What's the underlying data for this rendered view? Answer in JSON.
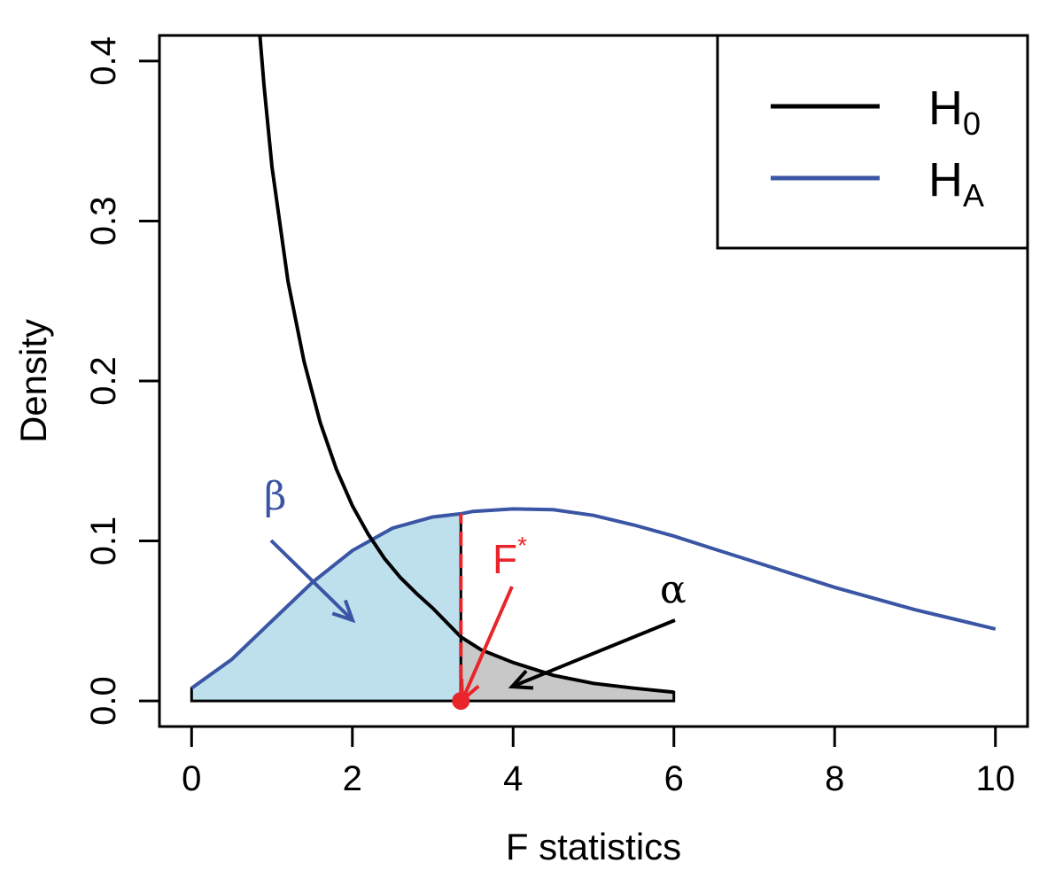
{
  "chart_data": {
    "type": "line",
    "xlabel": "F statistics",
    "ylabel": "Density",
    "xlim": [
      -0.4,
      10.4
    ],
    "ylim": [
      -0.016,
      0.416
    ],
    "x_ticks": [
      "0",
      "2",
      "4",
      "6",
      "8",
      "10"
    ],
    "y_ticks": [
      "0.0",
      "0.1",
      "0.2",
      "0.3",
      "0.4"
    ],
    "series": [
      {
        "name": "H0",
        "color": "#000000",
        "x": [
          0.85,
          0.9,
          1.0,
          1.2,
          1.4,
          1.6,
          1.8,
          2.0,
          2.2,
          2.4,
          2.6,
          2.8,
          3.0,
          3.35,
          3.6,
          4.0,
          4.5,
          5.0,
          5.5,
          6.0
        ],
        "y": [
          0.416,
          0.385,
          0.334,
          0.262,
          0.212,
          0.174,
          0.145,
          0.122,
          0.104,
          0.089,
          0.077,
          0.067,
          0.058,
          0.04,
          0.032,
          0.024,
          0.016,
          0.011,
          0.008,
          0.0055
        ]
      },
      {
        "name": "HA",
        "color": "#3a55a4",
        "x": [
          0.0,
          0.5,
          1.0,
          1.5,
          2.0,
          2.5,
          3.0,
          3.35,
          3.5,
          4.0,
          4.5,
          5.0,
          5.5,
          6.0,
          6.5,
          7.0,
          7.5,
          8.0,
          8.5,
          9.0,
          9.5,
          10.0
        ],
        "y": [
          0.008,
          0.026,
          0.05,
          0.074,
          0.094,
          0.108,
          0.115,
          0.117,
          0.1185,
          0.12,
          0.1195,
          0.116,
          0.11,
          0.103,
          0.095,
          0.087,
          0.079,
          0.071,
          0.064,
          0.057,
          0.051,
          0.045
        ]
      }
    ],
    "critical_value": 3.35,
    "beta_fill": "#bde0ec",
    "alpha_fill": "#c8c8c8",
    "fstar_color": "#e8252a",
    "legend": {
      "position": "top-right",
      "entries": [
        {
          "label": "H",
          "sub": "0",
          "color": "#000000"
        },
        {
          "label": "H",
          "sub": "A",
          "color": "#3a55a4"
        }
      ]
    },
    "annotations": {
      "beta": {
        "text": "β",
        "color": "#3a55a4"
      },
      "alpha": {
        "text": "α",
        "color": "#000000"
      },
      "fstar": {
        "text": "F",
        "sup": "*",
        "color": "#e8252a"
      }
    }
  }
}
